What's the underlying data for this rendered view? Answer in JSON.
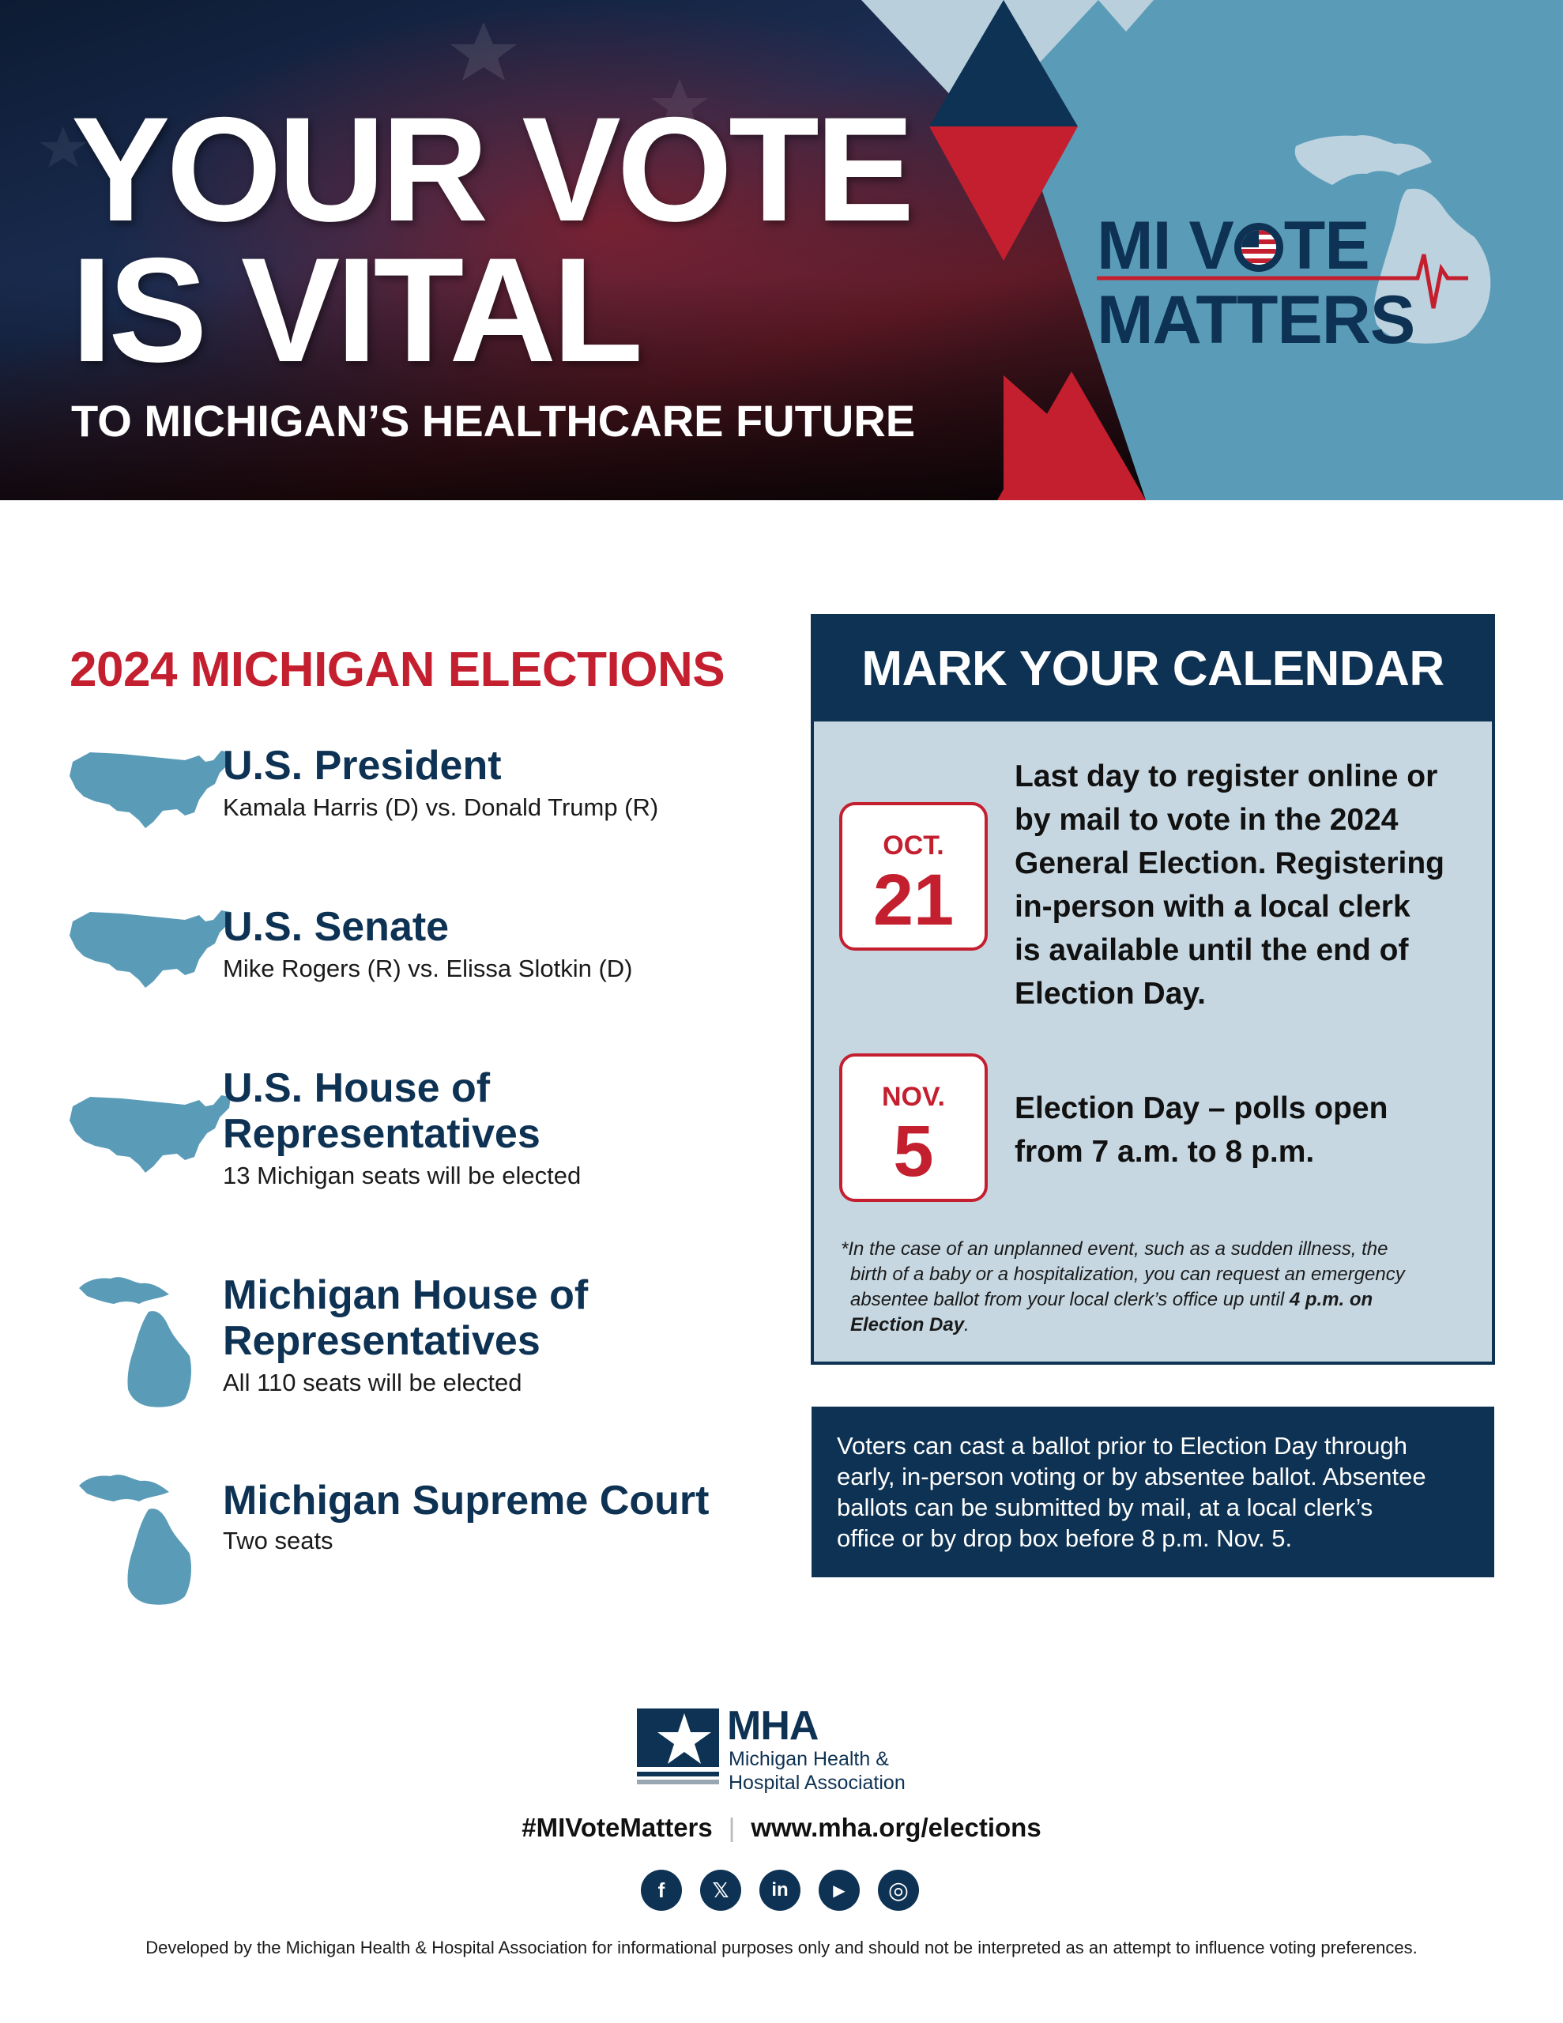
{
  "header": {
    "title_line1": "YOUR VOTE",
    "title_line2": "IS VITAL",
    "subtitle": "TO MICHIGAN’S HEALTHCARE FUTURE",
    "logo_line1_prefix": "MI V",
    "logo_line1_suffix": "TE",
    "logo_line2": "MATTERS",
    "logo_icons": [
      "michigan-map-icon",
      "us-flag-icon",
      "heartbeat-line-icon"
    ]
  },
  "elections": {
    "title": "2024 MICHIGAN ELECTIONS",
    "races": [
      {
        "icon": "us-map-icon",
        "name": "U.S. President",
        "desc": "Kamala Harris (D) vs. Donald Trump (R)"
      },
      {
        "icon": "us-map-icon",
        "name": "U.S. Senate",
        "desc": "Mike Rogers (R) vs. Elissa Slotkin (D)"
      },
      {
        "icon": "us-map-icon",
        "name_line1": "U.S. House of",
        "name_line2": "Representatives",
        "desc": "13 Michigan seats will be elected"
      },
      {
        "icon": "michigan-map-icon",
        "name_line1": "Michigan House of",
        "name_line2": "Representatives",
        "desc": "All 110 seats will be elected"
      },
      {
        "icon": "michigan-map-icon",
        "name": "Michigan Supreme Court",
        "desc": "Two seats"
      }
    ]
  },
  "calendar": {
    "title": "MARK YOUR CALENDAR",
    "events": [
      {
        "month": "OCT.",
        "day": "21",
        "lines": [
          "Last day to register online or",
          "by mail to vote in the 2024",
          "General Election. Registering",
          "in-person with a local clerk",
          "is available until the end of",
          "Election Day."
        ]
      },
      {
        "month": "NOV.",
        "day": "5",
        "lines": [
          "Election Day – polls open",
          "from 7 a.m. to 8 p.m."
        ]
      }
    ],
    "footnote": {
      "line1": "*In the case of an unplanned event, such as a sudden illness, the",
      "line2": "birth of a baby or a hospitalization, you can request an emergency",
      "line3_pre": "absentee ballot from your local clerk’s office up until ",
      "line3_bold": "4 p.m. on",
      "line4_bold": "Election Day",
      "line4_post": "."
    }
  },
  "early_voting": {
    "lines": [
      "Voters can cast a ballot prior to Election Day through",
      "early, in-person voting or by absentee ballot. Absentee",
      "ballots can be submitted by mail, at a local clerk’s",
      "office or by drop box before 8 p.m. Nov. 5."
    ]
  },
  "footer": {
    "org_short": "MHA",
    "org_full_line1": "Michigan Health &",
    "org_full_line2": "Hospital Association",
    "hashtag": "#MIVoteMatters",
    "separator": "|",
    "url": "www.mha.org/elections",
    "social": [
      {
        "icon": "facebook-icon",
        "glyph": "f"
      },
      {
        "icon": "x-icon",
        "glyph": "𝕏"
      },
      {
        "icon": "linkedin-icon",
        "glyph": "in"
      },
      {
        "icon": "youtube-icon",
        "glyph": "▶"
      },
      {
        "icon": "instagram-icon",
        "glyph": "◎"
      }
    ],
    "disclaimer": "Developed by the Michigan Health & Hospital Association for informational purposes only and should not be interpreted as an attempt to influence voting preferences."
  },
  "colors": {
    "navy": "#0e3253",
    "red": "#c41f2f",
    "steel_blue": "#5a9cb8",
    "light_blue": "#c6d7e1",
    "map_blue": "#5a9cb8"
  }
}
